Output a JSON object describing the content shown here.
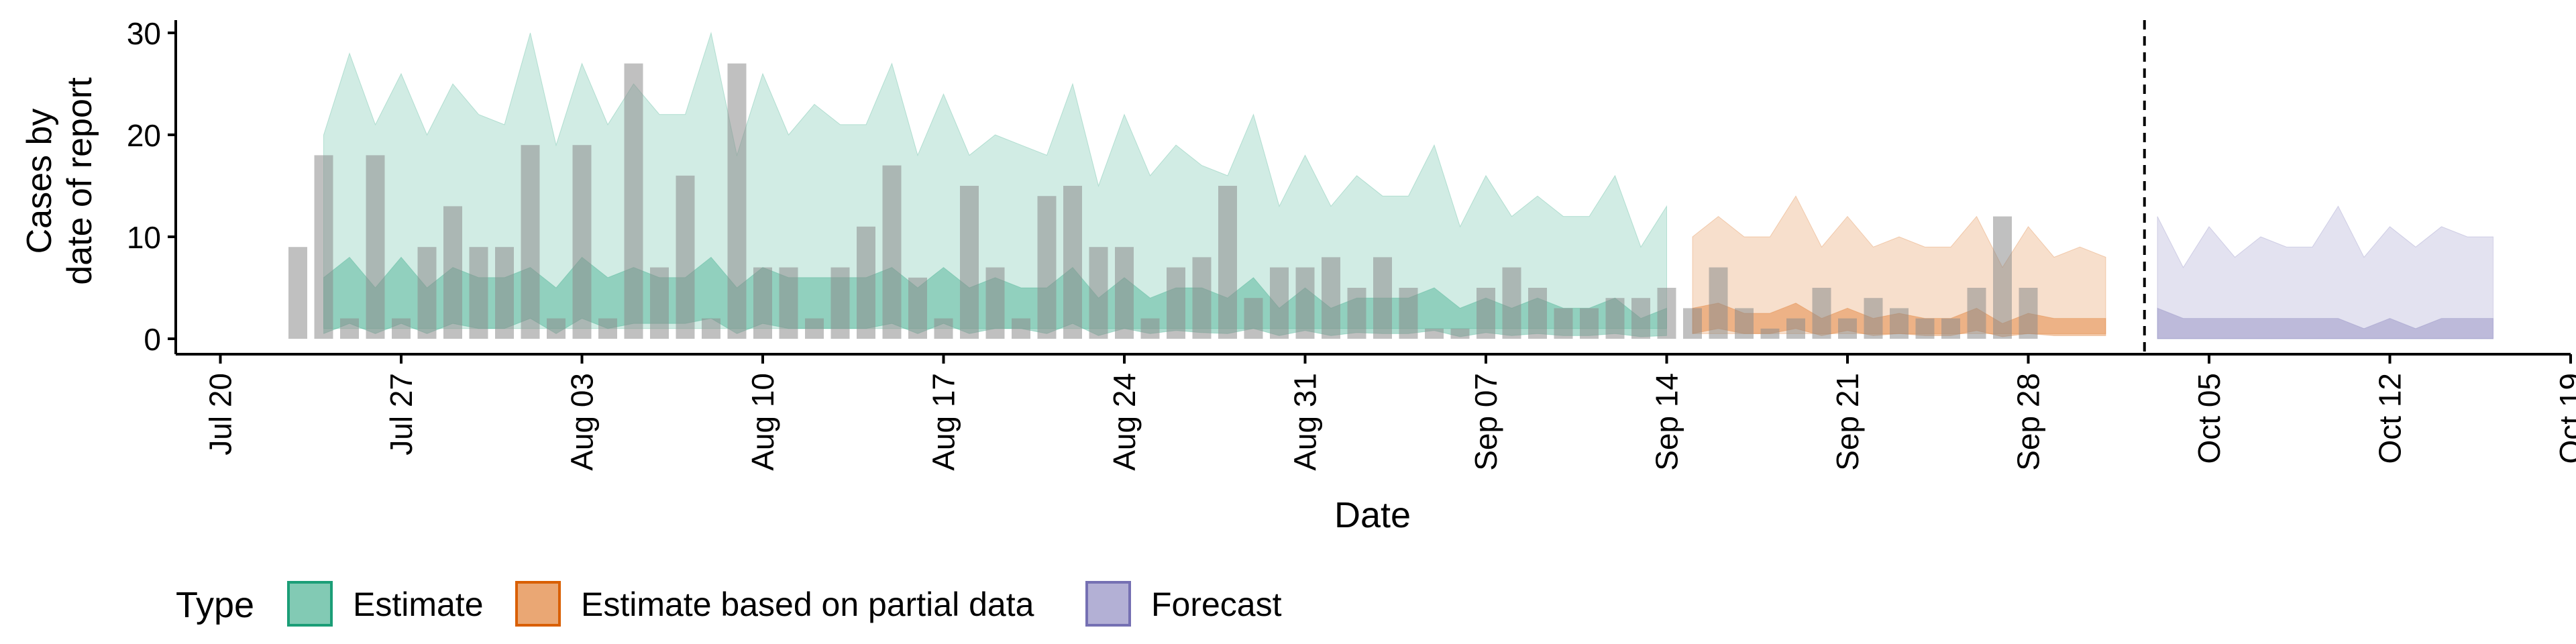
{
  "chart_data": {
    "type": "area",
    "title": "",
    "xlabel": "Date",
    "ylabel_lines": [
      "Cases by",
      "date of report"
    ],
    "date_range": [
      "2020-07-19",
      "2020-10-19"
    ],
    "ylim": [
      0,
      31
    ],
    "y_ticks": [
      0,
      10,
      20,
      30
    ],
    "x_ticks": [
      {
        "date": "2020-07-20",
        "label": "Jul 20"
      },
      {
        "date": "2020-07-27",
        "label": "Jul 27"
      },
      {
        "date": "2020-08-03",
        "label": "Aug 03"
      },
      {
        "date": "2020-08-10",
        "label": "Aug 10"
      },
      {
        "date": "2020-08-17",
        "label": "Aug 17"
      },
      {
        "date": "2020-08-24",
        "label": "Aug 24"
      },
      {
        "date": "2020-08-31",
        "label": "Aug 31"
      },
      {
        "date": "2020-09-07",
        "label": "Sep 07"
      },
      {
        "date": "2020-09-14",
        "label": "Sep 14"
      },
      {
        "date": "2020-09-21",
        "label": "Sep 21"
      },
      {
        "date": "2020-09-28",
        "label": "Sep 28"
      },
      {
        "date": "2020-10-05",
        "label": "Oct 05"
      },
      {
        "date": "2020-10-12",
        "label": "Oct 12"
      },
      {
        "date": "2020-10-19",
        "label": "Oct 19"
      }
    ],
    "grid": false,
    "vline_date": "2020-10-02",
    "legend": {
      "title": "Type",
      "placement": "bottom-left",
      "entries": [
        {
          "label": "Estimate",
          "color": "#1b9e77"
        },
        {
          "label": "Estimate based on partial data",
          "color": "#d95f02"
        },
        {
          "label": "Forecast",
          "color": "#7570b3"
        }
      ]
    },
    "bars": {
      "color": "#8c8c8c",
      "start_date": "2020-07-23",
      "values": [
        9,
        18,
        2,
        18,
        2,
        9,
        13,
        9,
        9,
        19,
        2,
        19,
        2,
        27,
        7,
        16,
        2,
        27,
        7,
        7,
        2,
        7,
        11,
        17,
        6,
        2,
        15,
        7,
        2,
        14,
        15,
        9,
        9,
        2,
        7,
        8,
        15,
        4,
        7,
        7,
        8,
        5,
        8,
        5,
        1,
        1,
        5,
        7,
        5,
        3,
        3,
        4,
        4,
        5,
        3,
        7,
        3,
        1,
        2,
        5,
        2,
        4,
        3,
        2,
        2,
        5,
        12,
        5
      ]
    },
    "series": [
      {
        "name": "Estimate",
        "start_date": "2020-07-24",
        "color": "#1b9e77",
        "upper90": [
          20,
          28,
          21,
          26,
          20,
          25,
          22,
          21,
          30,
          19,
          27,
          21,
          25,
          22,
          22,
          30,
          18,
          26,
          20,
          23,
          21,
          21,
          27,
          18,
          24,
          18,
          20,
          19,
          18,
          25,
          15,
          22,
          16,
          19,
          17,
          16,
          22,
          13,
          18,
          13,
          16,
          14,
          14,
          19,
          11,
          16,
          12,
          14,
          12,
          12,
          16,
          9,
          13
        ],
        "lower90": [
          1,
          1,
          1,
          1,
          1,
          1,
          1,
          1,
          1,
          1,
          1,
          1,
          1,
          1,
          1,
          1,
          1,
          1,
          1,
          1,
          1,
          1,
          1,
          1,
          1,
          1,
          1,
          1,
          1,
          1,
          1,
          1,
          1,
          1,
          1,
          1,
          1,
          1,
          1,
          1,
          1,
          1,
          1,
          1,
          1,
          1,
          1,
          1,
          1,
          1,
          1,
          1,
          1
        ],
        "upper50": [
          6,
          8,
          5,
          8,
          5,
          7,
          6,
          6,
          7,
          5,
          8,
          6,
          7,
          6,
          6,
          8,
          5,
          7,
          6,
          6,
          6,
          6,
          7,
          5,
          7,
          5,
          6,
          5,
          5,
          7,
          4,
          6,
          4,
          5,
          5,
          4,
          6,
          3,
          5,
          3,
          4,
          4,
          4,
          5,
          3,
          4,
          3,
          4,
          3,
          3,
          4,
          2,
          3
        ],
        "lower50": [
          0.5,
          1.5,
          0.5,
          1.5,
          0.5,
          1.5,
          1,
          1,
          2,
          0.5,
          2,
          1,
          1.5,
          1.5,
          1.5,
          2,
          0.5,
          1.5,
          1,
          1,
          1,
          1,
          1.5,
          0.5,
          1.5,
          0.5,
          1,
          1,
          0.5,
          1.5,
          0.3,
          1,
          0.5,
          0.8,
          0.6,
          0.5,
          1,
          0.3,
          0.8,
          0.3,
          0.6,
          0.5,
          0.5,
          0.8,
          0.2,
          0.6,
          0.3,
          0.5,
          0.3,
          0.3,
          0.5,
          0.2,
          0.3
        ]
      },
      {
        "name": "Estimate based on partial data",
        "start_date": "2020-09-15",
        "color": "#d95f02",
        "upper90": [
          10,
          12,
          10,
          10,
          14,
          9,
          12,
          9,
          10,
          9,
          9,
          12,
          7,
          11,
          8,
          9,
          8
        ],
        "lower90": [
          0.5,
          0.5,
          0.5,
          0.5,
          0.5,
          0.5,
          0.5,
          0.5,
          0.5,
          0.5,
          0.5,
          0.5,
          0.5,
          0.5,
          0.5,
          0.5,
          0.5
        ],
        "upper50": [
          3,
          3.5,
          2.5,
          2.5,
          3.5,
          2,
          3,
          2,
          2.5,
          2,
          2,
          3,
          1.5,
          2.5,
          2,
          2,
          2
        ],
        "lower50": [
          0.5,
          1,
          0.5,
          0.5,
          1,
          0.3,
          0.8,
          0.3,
          0.5,
          0.3,
          0.3,
          0.8,
          0.2,
          0.5,
          0.3,
          0.3,
          0.3
        ]
      },
      {
        "name": "Forecast",
        "start_date": "2020-10-03",
        "color": "#7570b3",
        "upper90": [
          12,
          7,
          11,
          8,
          10,
          9,
          9,
          13,
          8,
          11,
          9,
          11,
          10,
          10
        ],
        "lower90": [
          0,
          0,
          0,
          0,
          0,
          0,
          0,
          0,
          0,
          0,
          0,
          0,
          0,
          0
        ],
        "upper50": [
          3,
          2,
          2,
          2,
          2,
          2,
          2,
          2,
          1,
          2,
          1,
          2,
          2,
          2
        ],
        "lower50": [
          0,
          0,
          0,
          0,
          0,
          0,
          0,
          0,
          0,
          0,
          0,
          0,
          0,
          0
        ]
      }
    ]
  }
}
